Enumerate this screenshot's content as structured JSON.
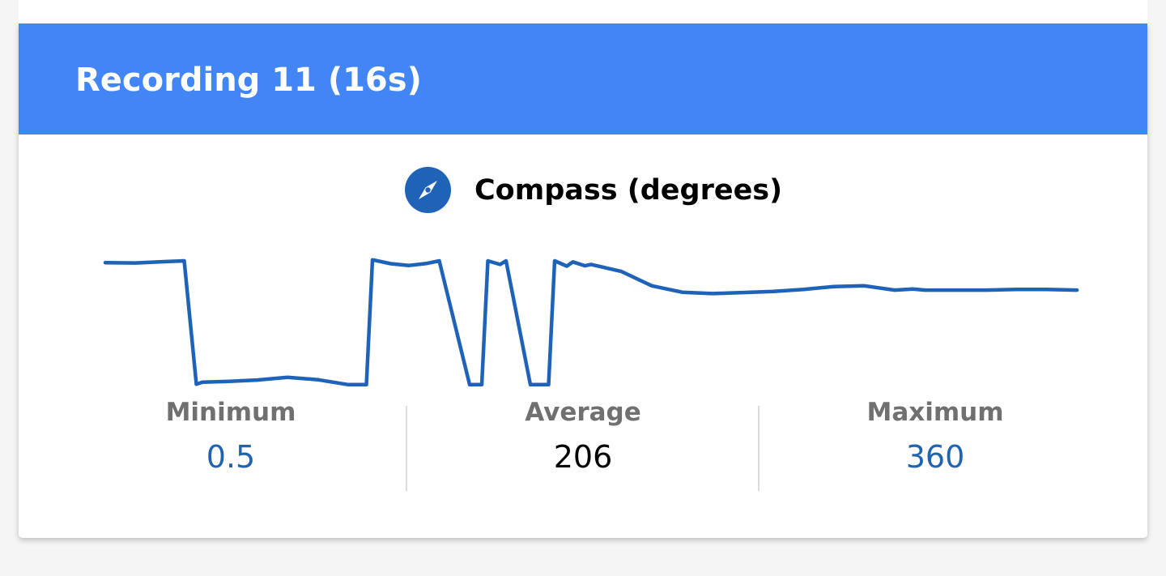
{
  "recording": {
    "title": "Recording 11 (16s)"
  },
  "sensor": {
    "title": "Compass (degrees)",
    "icon": "compass-icon"
  },
  "stats": {
    "minimum_label": "Minimum",
    "minimum_value": "0.5",
    "average_label": "Average",
    "average_value": "206",
    "maximum_label": "Maximum",
    "maximum_value": "360"
  },
  "colors": {
    "header": "#4285f4",
    "line": "#1e63b8",
    "accent_value": "#2064b0",
    "label_gray": "#707070",
    "background": "#f5f5f5"
  },
  "chart_data": {
    "type": "line",
    "title": "",
    "xlabel": "",
    "ylabel": "",
    "ylim": [
      0.5,
      360
    ],
    "xlim": [
      0,
      16
    ],
    "grid": false,
    "legend": "none",
    "series": [
      {
        "x": [
          0,
          0.5,
          1.0,
          1.3,
          1.5,
          1.6,
          2.0,
          2.5,
          3.0,
          3.5,
          4.0,
          4.3,
          4.4,
          4.7,
          5.0,
          5.3,
          5.5,
          6.0,
          6.2,
          6.3,
          6.5,
          6.6,
          7.0,
          7.3,
          7.4,
          7.6,
          7.7,
          7.9,
          8.0,
          8.5,
          9.0,
          9.5,
          10.0,
          10.5,
          11.0,
          11.5,
          12.0,
          12.5,
          13.0,
          13.3,
          13.5,
          14.0,
          14.5,
          15.0,
          15.5,
          16.0
        ],
        "y": [
          348,
          347,
          351,
          353,
          2,
          8,
          10,
          14,
          22,
          15,
          1,
          1,
          356,
          345,
          340,
          346,
          353,
          1,
          1,
          353,
          343,
          353,
          1,
          1,
          353,
          338,
          350,
          339,
          343,
          323,
          282,
          264,
          260,
          263,
          266,
          272,
          280,
          282,
          270,
          273,
          270,
          270,
          270,
          272,
          272,
          270
        ]
      }
    ]
  }
}
